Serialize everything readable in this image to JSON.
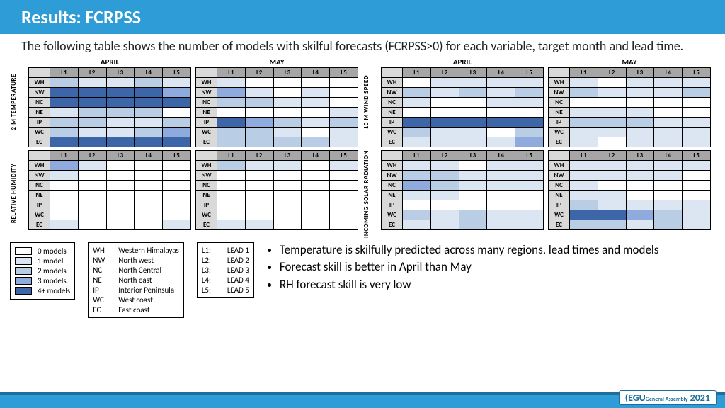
{
  "colors": {
    "c0": "#ffffff",
    "c1": "#dce6f2",
    "c2": "#b9cde5",
    "c3": "#8faadc",
    "c4": "#3d66a9"
  },
  "header": {
    "title": "Results: FCRPSS"
  },
  "subtext": "The following table shows the number of models with skilful forecasts (FCRPSS>0) for each variable, target month and lead time.",
  "row_labels": [
    "WH",
    "NW",
    "NC",
    "NE",
    "IP",
    "WC",
    "EC"
  ],
  "col_labels": [
    "L1",
    "L2",
    "L3",
    "L4",
    "L5"
  ],
  "vlabels": [
    "2 M TEMPERATURE",
    "RELATIVE HUMIDITY",
    "10 M WIND SPEED",
    "INCOMING SOLAR RADIATION"
  ],
  "months": [
    "APRIL",
    "MAY"
  ],
  "heatmaps": {
    "temp_apr": [
      [
        2,
        1,
        1,
        2,
        1
      ],
      [
        4,
        4,
        4,
        4,
        3
      ],
      [
        4,
        4,
        4,
        4,
        4
      ],
      [
        1,
        2,
        2,
        2,
        0
      ],
      [
        2,
        2,
        1,
        1,
        2
      ],
      [
        2,
        1,
        1,
        2,
        3
      ],
      [
        4,
        4,
        4,
        4,
        4
      ]
    ],
    "temp_may": [
      [
        1,
        0,
        0,
        0,
        0
      ],
      [
        3,
        1,
        0,
        1,
        0
      ],
      [
        2,
        2,
        1,
        1,
        0
      ],
      [
        0,
        0,
        0,
        0,
        1
      ],
      [
        4,
        3,
        2,
        1,
        2
      ],
      [
        2,
        2,
        1,
        0,
        1
      ],
      [
        2,
        2,
        2,
        2,
        1
      ]
    ],
    "rh_apr": [
      [
        3,
        1,
        0,
        0,
        0
      ],
      [
        1,
        0,
        0,
        0,
        0
      ],
      [
        0,
        0,
        0,
        0,
        0
      ],
      [
        0,
        0,
        0,
        0,
        0
      ],
      [
        0,
        0,
        0,
        0,
        0
      ],
      [
        0,
        0,
        0,
        0,
        0
      ],
      [
        1,
        0,
        0,
        0,
        1
      ]
    ],
    "rh_may": [
      [
        2,
        1,
        1,
        0,
        1
      ],
      [
        0,
        0,
        0,
        0,
        0
      ],
      [
        0,
        0,
        0,
        0,
        0
      ],
      [
        0,
        0,
        0,
        0,
        0
      ],
      [
        0,
        0,
        0,
        0,
        0
      ],
      [
        0,
        0,
        0,
        0,
        0
      ],
      [
        1,
        1,
        0,
        0,
        0
      ]
    ],
    "ws_apr": [
      [
        0,
        1,
        1,
        1,
        1
      ],
      [
        2,
        1,
        2,
        1,
        2
      ],
      [
        1,
        0,
        0,
        1,
        1
      ],
      [
        0,
        0,
        0,
        0,
        0
      ],
      [
        4,
        4,
        4,
        4,
        4
      ],
      [
        2,
        1,
        1,
        0,
        2
      ],
      [
        1,
        1,
        1,
        1,
        3
      ]
    ],
    "ws_may": [
      [
        1,
        0,
        1,
        1,
        1
      ],
      [
        2,
        1,
        1,
        1,
        2
      ],
      [
        0,
        0,
        0,
        0,
        0
      ],
      [
        1,
        1,
        1,
        0,
        0
      ],
      [
        2,
        2,
        2,
        1,
        1
      ],
      [
        1,
        1,
        1,
        1,
        1
      ],
      [
        1,
        0,
        1,
        1,
        1
      ]
    ],
    "sr_apr": [
      [
        1,
        1,
        0,
        1,
        1
      ],
      [
        2,
        2,
        1,
        1,
        1
      ],
      [
        3,
        2,
        1,
        1,
        1
      ],
      [
        1,
        1,
        0,
        0,
        0
      ],
      [
        0,
        0,
        0,
        0,
        0
      ],
      [
        2,
        1,
        2,
        1,
        1
      ],
      [
        1,
        1,
        2,
        1,
        1
      ]
    ],
    "sr_may": [
      [
        1,
        1,
        1,
        1,
        1
      ],
      [
        1,
        1,
        1,
        1,
        0
      ],
      [
        1,
        0,
        0,
        0,
        0
      ],
      [
        1,
        1,
        0,
        0,
        0
      ],
      [
        2,
        1,
        1,
        1,
        1
      ],
      [
        4,
        4,
        3,
        2,
        1
      ],
      [
        2,
        2,
        1,
        2,
        1
      ]
    ]
  },
  "legend_models": [
    "0 models",
    "1 model",
    "2 models",
    "3 models",
    "4+ models"
  ],
  "legend_regions": [
    [
      "WH",
      "Western Himalayas"
    ],
    [
      "NW",
      "North west"
    ],
    [
      "NC",
      "North Central"
    ],
    [
      "NE",
      "North east"
    ],
    [
      "IP",
      "Interior Peninsula"
    ],
    [
      "WC",
      "West coast"
    ],
    [
      "EC",
      "East coast"
    ]
  ],
  "legend_leads": [
    [
      "L1:",
      "LEAD 1"
    ],
    [
      "L2:",
      "LEAD 2"
    ],
    [
      "L3:",
      "LEAD 3"
    ],
    [
      "L4:",
      "LEAD 4"
    ],
    [
      "L5:",
      "LEAD 5"
    ]
  ],
  "bullets": [
    "Temperature is skilfully predicted across many regions, lead times and models",
    "Forecast skill is better in April than May",
    "RH forecast skill is very low"
  ],
  "footer": {
    "badge_prefix": "(EGU",
    "badge_mid": "General Assembly",
    "badge_year": "2021"
  }
}
